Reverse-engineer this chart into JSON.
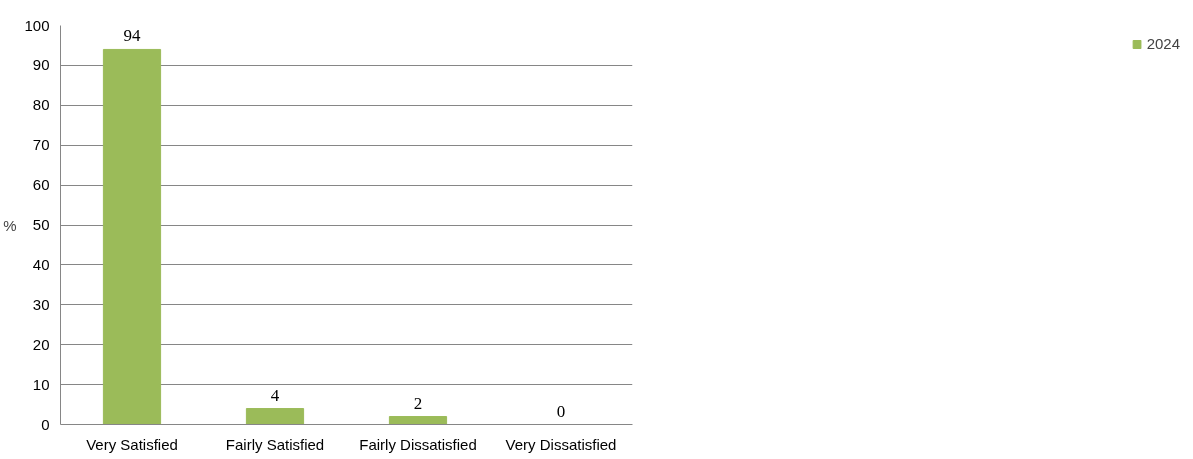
{
  "chart_data": {
    "type": "bar",
    "ylabel": "%",
    "categories": [
      "Very Satisfied",
      "Fairly Satisfied",
      "Fairly Dissatisfied",
      "Very Dissatisfied"
    ],
    "series": [
      {
        "name": "2024",
        "color": "#9bbb59",
        "values": [
          94,
          4,
          2,
          0
        ]
      }
    ],
    "ylim": [
      0,
      100
    ],
    "yticks": [
      0,
      10,
      20,
      30,
      40,
      50,
      60,
      70,
      80,
      90,
      100
    ],
    "grid": "y",
    "legend": "right",
    "data_labels": true
  }
}
